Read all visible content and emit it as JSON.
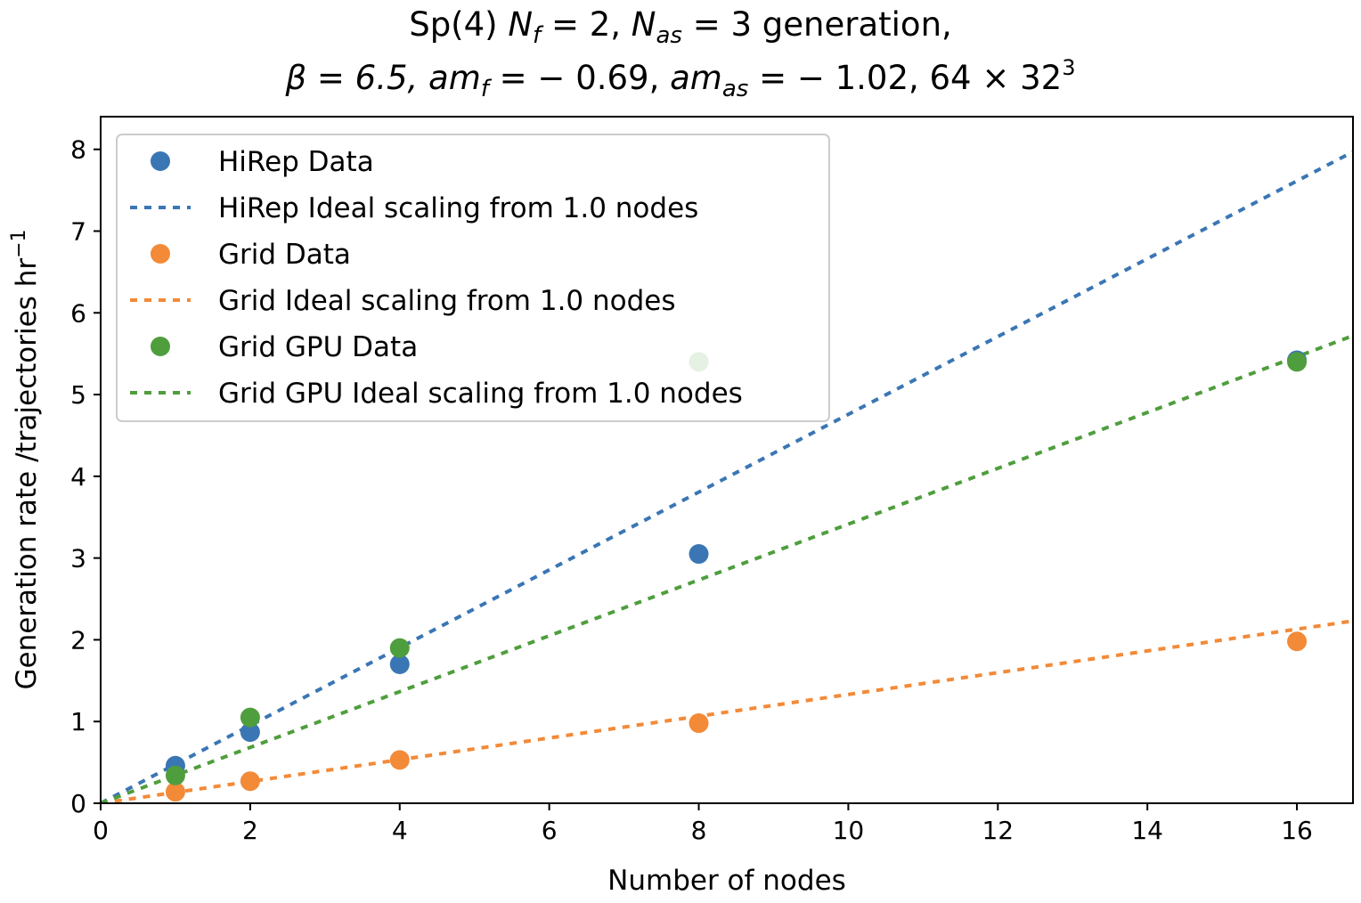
{
  "chart_data": {
    "type": "scatter",
    "title_line1": {
      "a": "Sp(4) ",
      "nf_sym": "N",
      "nf_sub": "f",
      "nf_val": " = 2, ",
      "nas_sym": "N",
      "nas_sub": "as",
      "nas_val": " = 3 generation,"
    },
    "title_line2": {
      "beta": "β = 6.5, ",
      "amf_sym": "am",
      "amf_sub": "f",
      "amf_val": " = − 0.69, ",
      "amas_sym": "am",
      "amas_sub": "as",
      "amas_val": " = − 1.02, 64 × 32",
      "power": "3"
    },
    "xlabel": "Number of nodes",
    "ylabel": "Generation rate /trajectories hr",
    "ylabel_sup": "−1",
    "xlim": [
      0,
      16.75
    ],
    "ylim": [
      0,
      8.4
    ],
    "xticks": [
      0,
      2,
      4,
      6,
      8,
      10,
      12,
      14,
      16
    ],
    "yticks": [
      0,
      1,
      2,
      3,
      4,
      5,
      6,
      7,
      8
    ],
    "grid": false,
    "legend_position": "top-left",
    "series": [
      {
        "key": "hirep-data",
        "name": "HiRep Data",
        "kind": "scatter",
        "color": "#3a76b4",
        "x": [
          1,
          2,
          4,
          8,
          16
        ],
        "y": [
          0.46,
          0.87,
          1.7,
          3.05,
          5.42
        ]
      },
      {
        "key": "hirep-ideal",
        "name": "HiRep Ideal scaling from 1.0 nodes",
        "kind": "line",
        "color": "#3a76b4",
        "x": [
          0,
          16.75
        ],
        "y": [
          0,
          7.97
        ]
      },
      {
        "key": "grid-data",
        "name": "Grid Data",
        "kind": "scatter",
        "color": "#f28a38",
        "x": [
          1,
          2,
          4,
          8,
          16
        ],
        "y": [
          0.14,
          0.27,
          0.53,
          0.98,
          1.98
        ]
      },
      {
        "key": "grid-ideal",
        "name": "Grid Ideal scaling from 1.0 nodes",
        "kind": "line",
        "color": "#f28a38",
        "x": [
          0,
          16.75
        ],
        "y": [
          0,
          2.23
        ]
      },
      {
        "key": "gridgpu-data",
        "name": "Grid GPU Data",
        "kind": "scatter",
        "color": "#4f9e3d",
        "x": [
          1,
          2,
          4,
          8,
          16
        ],
        "y": [
          0.34,
          1.05,
          1.9,
          5.4,
          5.4
        ]
      },
      {
        "key": "gridgpu-ideal",
        "name": "Grid GPU Ideal scaling from 1.0 nodes",
        "kind": "line",
        "color": "#4f9e3d",
        "x": [
          0,
          16.75
        ],
        "y": [
          0,
          5.72
        ]
      }
    ]
  }
}
